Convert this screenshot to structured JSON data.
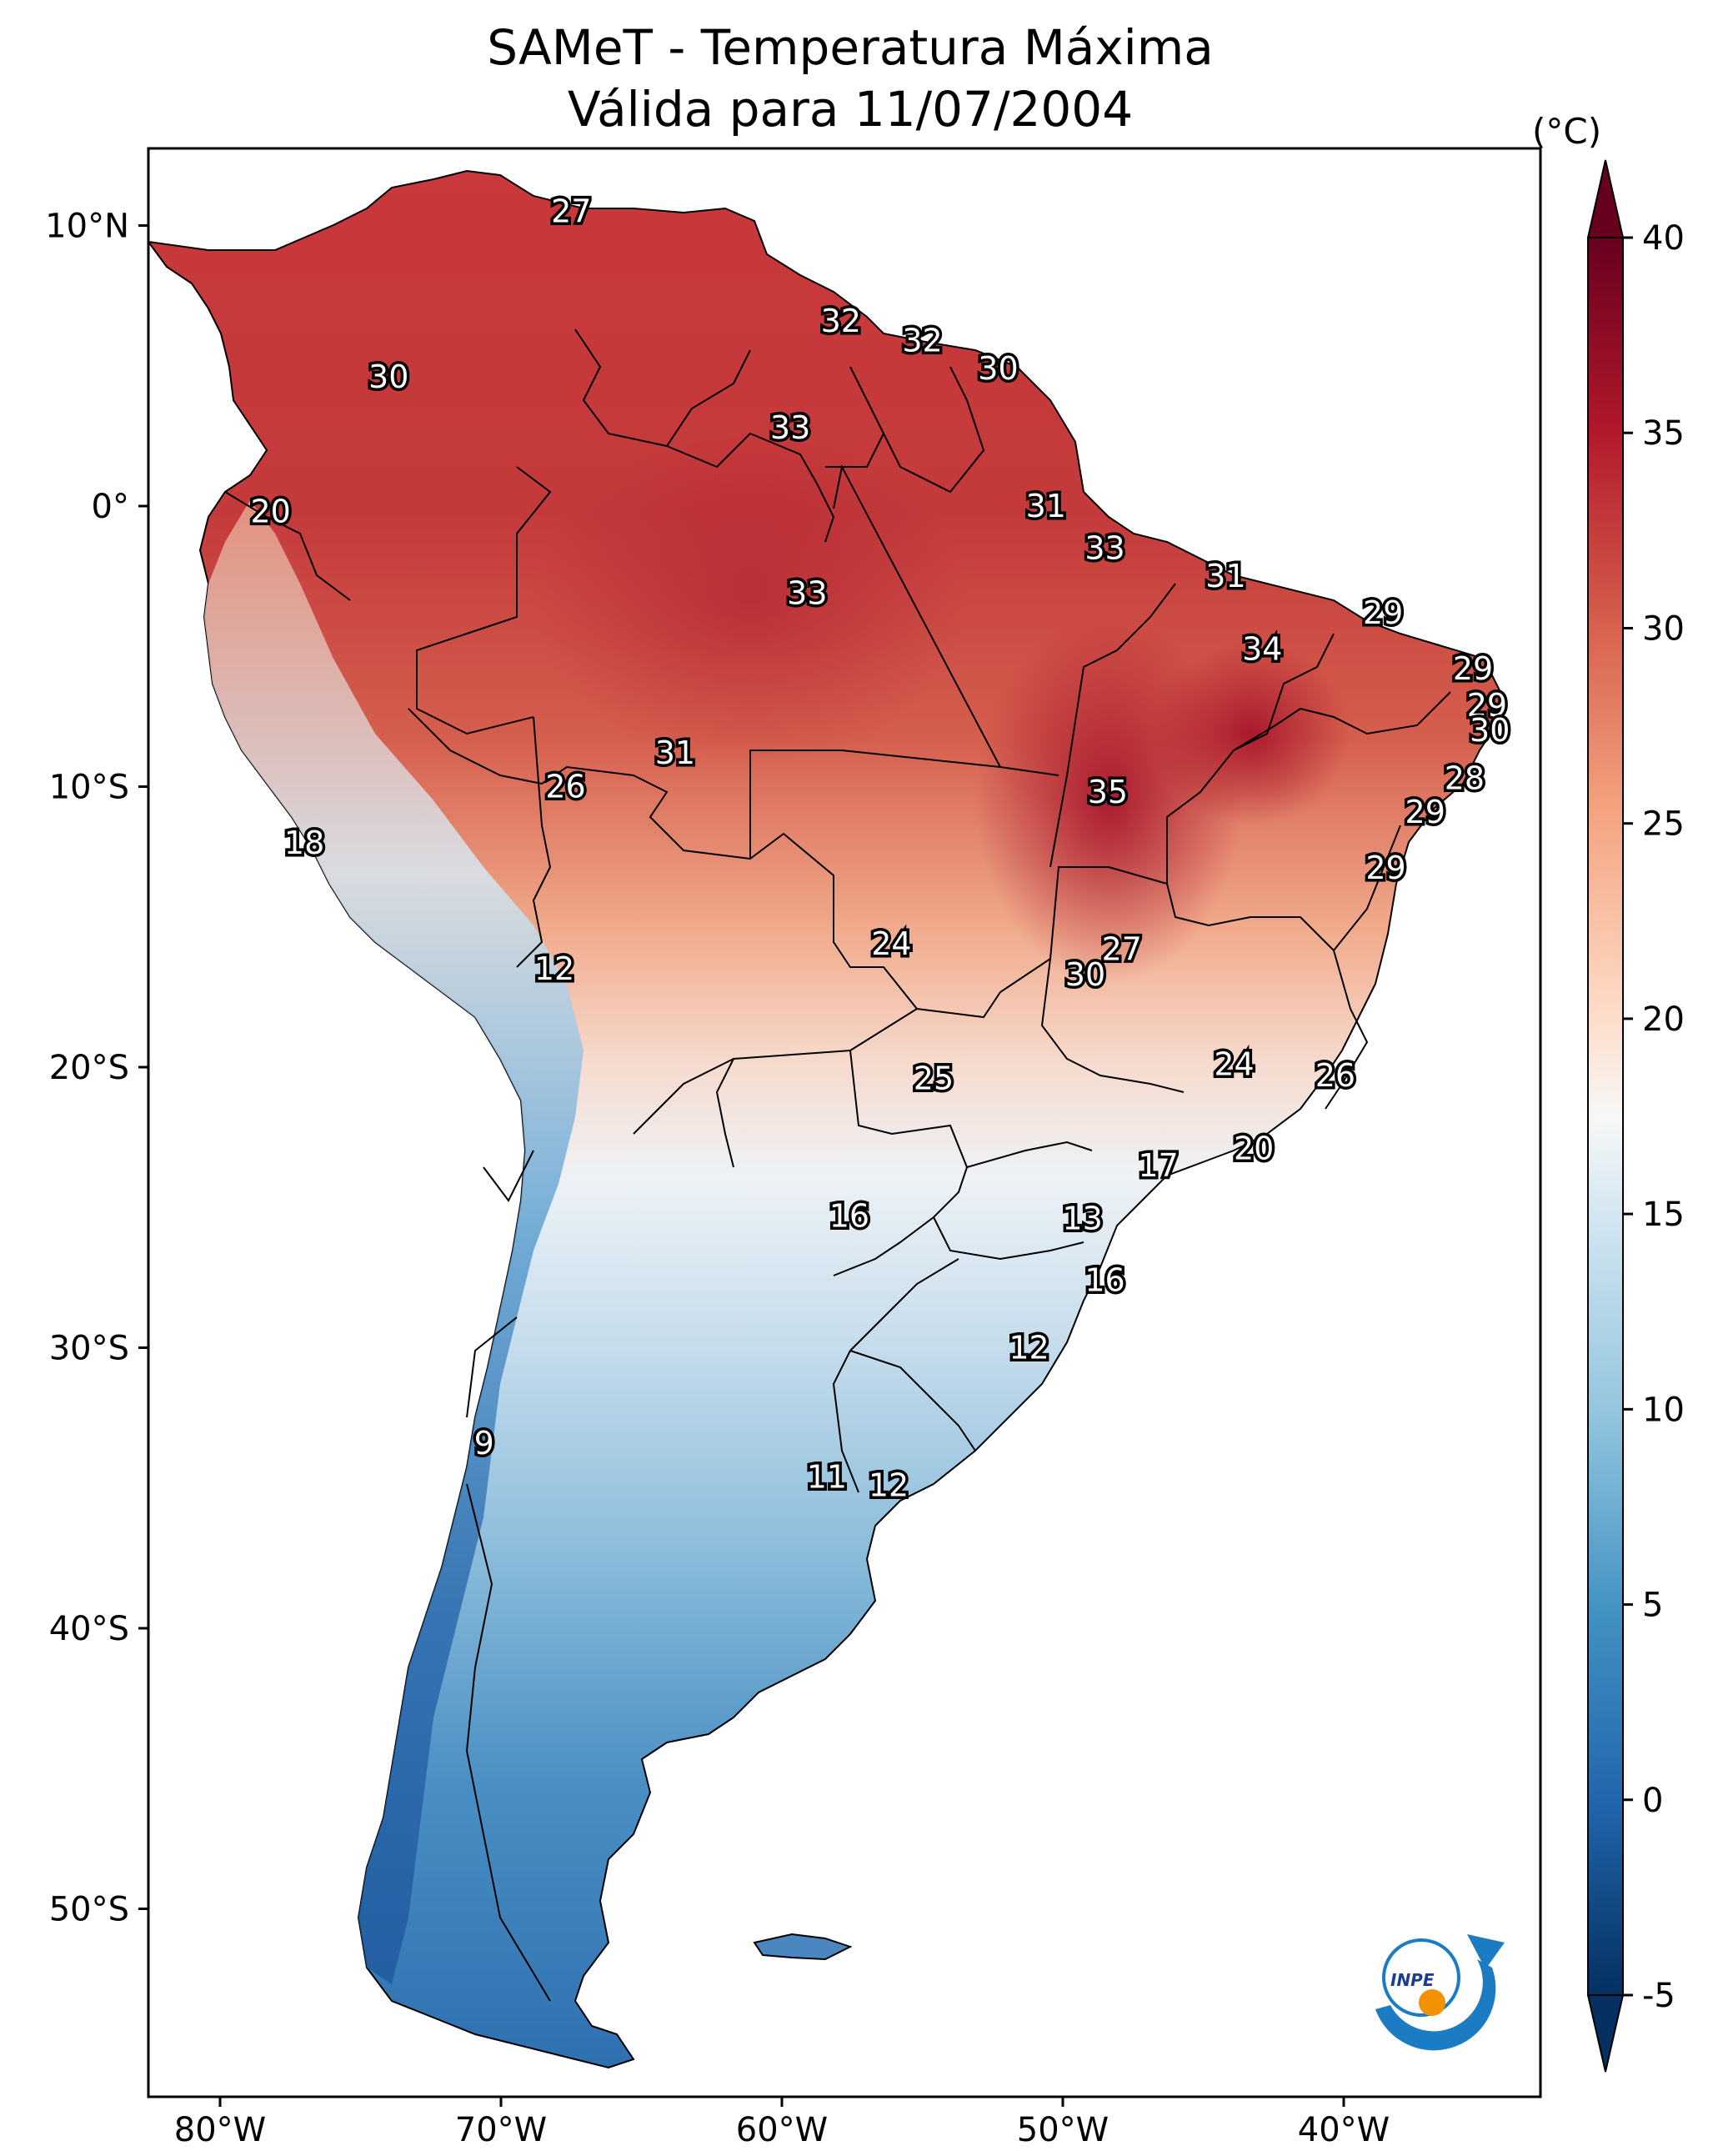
{
  "title": {
    "line1": "SAMeT - Temperatura Máxima",
    "line2": "Válida para 11/07/2004"
  },
  "colorbar": {
    "unit": "(°C)",
    "ticks": [
      "40",
      "35",
      "30",
      "25",
      "20",
      "15",
      "10",
      "5",
      "0",
      "-5"
    ],
    "range": [
      -5,
      40
    ],
    "extend": "both",
    "colormap": "RdBu_r"
  },
  "axes": {
    "lon_ticks": [
      "80°W",
      "70°W",
      "60°W",
      "50°W",
      "40°W"
    ],
    "lat_ticks": [
      "10°N",
      "0°",
      "10°S",
      "20°S",
      "30°S",
      "40°S",
      "50°S"
    ]
  },
  "station_values": [
    {
      "value": "27",
      "lon": -67.5,
      "lat": 10.5
    },
    {
      "value": "32",
      "lon": -57.9,
      "lat": 6.6
    },
    {
      "value": "32",
      "lon": -55.0,
      "lat": 5.9
    },
    {
      "value": "30",
      "lon": -52.3,
      "lat": 4.9
    },
    {
      "value": "30",
      "lon": -74.0,
      "lat": 4.6
    },
    {
      "value": "33",
      "lon": -59.7,
      "lat": 2.8
    },
    {
      "value": "20",
      "lon": -78.2,
      "lat": -0.2
    },
    {
      "value": "31",
      "lon": -50.6,
      "lat": 0.0
    },
    {
      "value": "33",
      "lon": -48.5,
      "lat": -1.5
    },
    {
      "value": "31",
      "lon": -44.2,
      "lat": -2.5
    },
    {
      "value": "33",
      "lon": -59.1,
      "lat": -3.1
    },
    {
      "value": "29",
      "lon": -38.6,
      "lat": -3.8
    },
    {
      "value": "34",
      "lon": -42.9,
      "lat": -5.1
    },
    {
      "value": "29",
      "lon": -35.4,
      "lat": -5.8
    },
    {
      "value": "29",
      "lon": -34.9,
      "lat": -7.1
    },
    {
      "value": "30",
      "lon": -34.8,
      "lat": -8.0
    },
    {
      "value": "31",
      "lon": -63.8,
      "lat": -8.8
    },
    {
      "value": "26",
      "lon": -67.7,
      "lat": -10.0
    },
    {
      "value": "35",
      "lon": -48.4,
      "lat": -10.2
    },
    {
      "value": "28",
      "lon": -35.7,
      "lat": -9.7
    },
    {
      "value": "29",
      "lon": -37.1,
      "lat": -10.9
    },
    {
      "value": "18",
      "lon": -77.0,
      "lat": -12.0
    },
    {
      "value": "29",
      "lon": -38.5,
      "lat": -12.9
    },
    {
      "value": "24",
      "lon": -56.1,
      "lat": -15.6
    },
    {
      "value": "27",
      "lon": -47.9,
      "lat": -15.8
    },
    {
      "value": "30",
      "lon": -49.2,
      "lat": -16.7
    },
    {
      "value": "12",
      "lon": -68.1,
      "lat": -16.5
    },
    {
      "value": "24",
      "lon": -43.9,
      "lat": -19.9
    },
    {
      "value": "26",
      "lon": -40.3,
      "lat": -20.3
    },
    {
      "value": "25",
      "lon": -54.6,
      "lat": -20.4
    },
    {
      "value": "20",
      "lon": -43.2,
      "lat": -22.9
    },
    {
      "value": "17",
      "lon": -46.6,
      "lat": -23.5
    },
    {
      "value": "16",
      "lon": -57.6,
      "lat": -25.3
    },
    {
      "value": "13",
      "lon": -49.3,
      "lat": -25.4
    },
    {
      "value": "16",
      "lon": -48.5,
      "lat": -27.6
    },
    {
      "value": "12",
      "lon": -51.2,
      "lat": -30.0
    },
    {
      "value": "9",
      "lon": -70.6,
      "lat": -33.4
    },
    {
      "value": "11",
      "lon": -58.4,
      "lat": -34.6
    },
    {
      "value": "12",
      "lon": -56.2,
      "lat": -34.9
    }
  ],
  "logo": {
    "text": "INPE"
  }
}
